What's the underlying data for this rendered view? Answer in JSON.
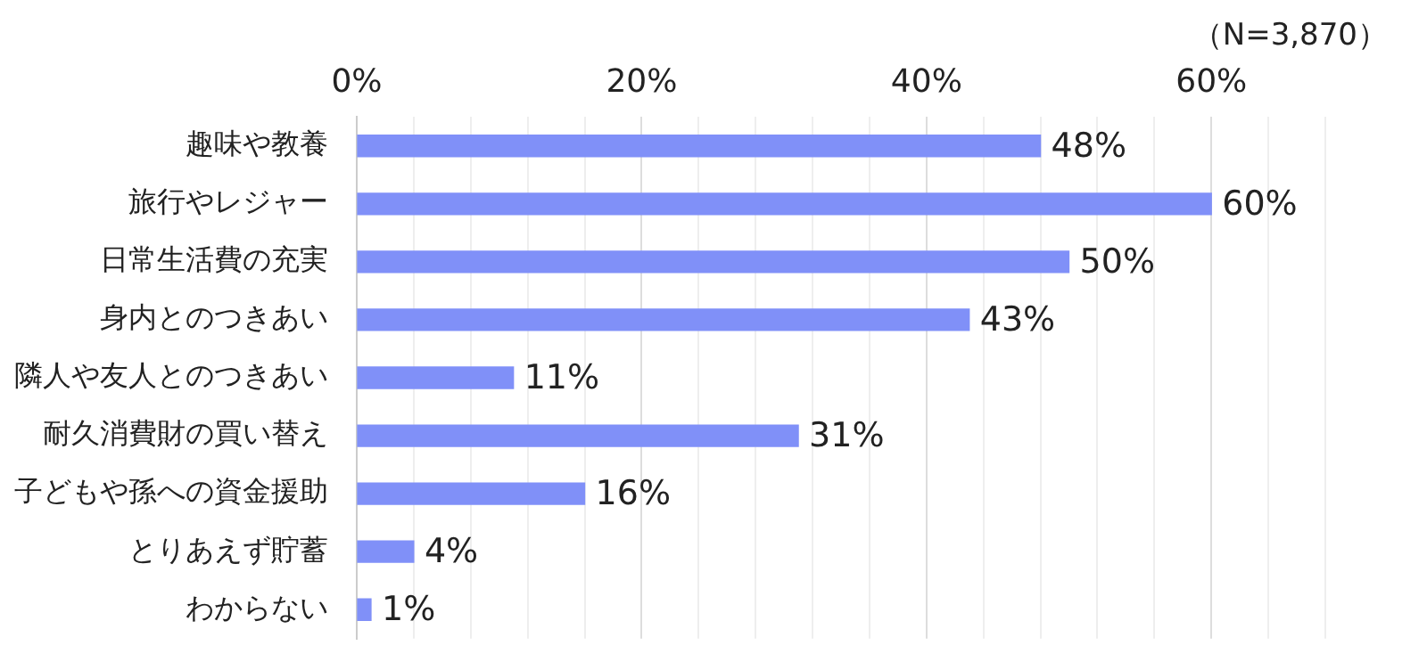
{
  "chart_data": {
    "type": "bar",
    "orientation": "horizontal",
    "categories": [
      "趣味や教養",
      "旅行やレジャー",
      "日常生活費の充実",
      "身内とのつきあい",
      "隣人や友人とのつきあい",
      "耐久消費財の買い替え",
      "子どもや孫への資金援助",
      "とりあえず貯蓄",
      "わからない"
    ],
    "values": [
      48,
      60,
      50,
      43,
      11,
      31,
      16,
      4,
      1
    ],
    "color": "#8090f8",
    "data_labels": true,
    "value_labels": [
      "48%",
      "60%",
      "50%",
      "43%",
      "11%",
      "31%",
      "16%",
      "4%",
      "1%"
    ],
    "xlim": [
      0,
      68
    ],
    "xticks": [
      {
        "value": 0,
        "label": "0%"
      },
      {
        "value": 4,
        "label": null
      },
      {
        "value": 8,
        "label": null
      },
      {
        "value": 12,
        "label": null
      },
      {
        "value": 16,
        "label": null
      },
      {
        "value": 20,
        "label": "20%"
      },
      {
        "value": 24,
        "label": null
      },
      {
        "value": 28,
        "label": null
      },
      {
        "value": 32,
        "label": null
      },
      {
        "value": 36,
        "label": null
      },
      {
        "value": 40,
        "label": "40%"
      },
      {
        "value": 44,
        "label": null
      },
      {
        "value": 48,
        "label": null
      },
      {
        "value": 52,
        "label": null
      },
      {
        "value": 56,
        "label": null
      },
      {
        "value": 60,
        "label": "60%"
      },
      {
        "value": 64,
        "label": null
      },
      {
        "value": 68,
        "label": null
      }
    ],
    "grid": "x",
    "legend": false,
    "annotations": [
      "（N=3,870）"
    ]
  }
}
